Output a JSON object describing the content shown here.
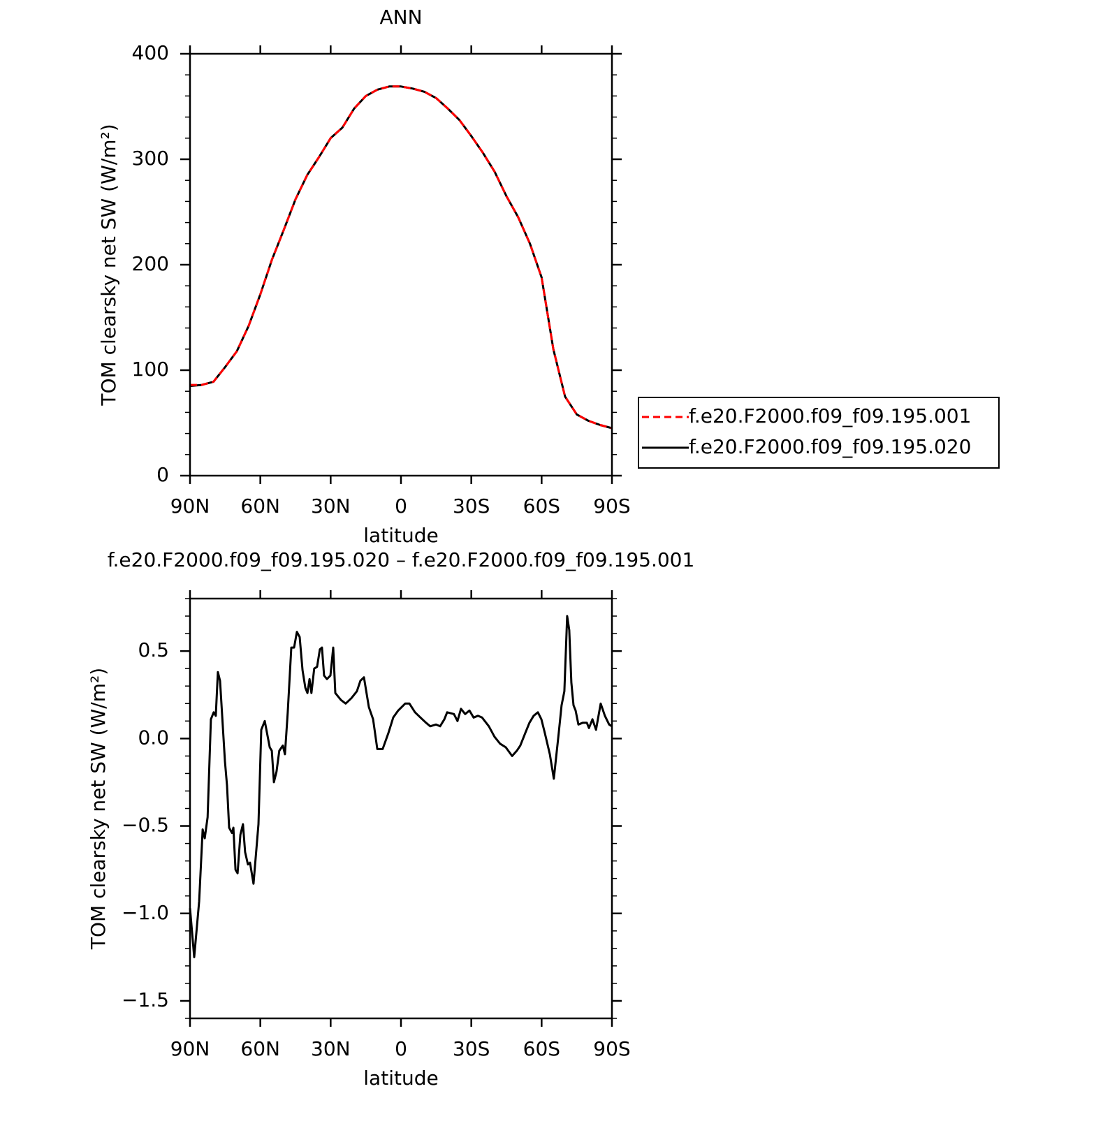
{
  "chart_data": [
    {
      "type": "line",
      "title": "ANN",
      "xlabel": "latitude",
      "ylabel": "TOM clearsky net SW (W/m²)",
      "x": [
        90,
        85,
        80,
        75,
        70,
        65,
        60,
        55,
        50,
        45,
        40,
        35,
        30,
        25,
        20,
        15,
        10,
        5,
        0,
        -5,
        -10,
        -15,
        -20,
        -25,
        -30,
        -35,
        -40,
        -45,
        -50,
        -55,
        -60,
        -65,
        -70,
        -75,
        -80,
        -85,
        -90
      ],
      "xlim": [
        90,
        -90
      ],
      "xticks": [
        {
          "value": 90,
          "label": "90N"
        },
        {
          "value": 60,
          "label": "60N"
        },
        {
          "value": 30,
          "label": "30N"
        },
        0,
        {
          "value": -30,
          "label": "30S"
        },
        {
          "value": -60,
          "label": "60S"
        },
        {
          "value": -90,
          "label": "90S"
        }
      ],
      "ylim": [
        0,
        400
      ],
      "yticks": [
        0,
        100,
        200,
        300,
        400
      ],
      "legend": "right",
      "series": [
        {
          "name": "f.e20.F2000.f09_f09.195.001",
          "color": "#ff0000",
          "linestyle": "dashed",
          "values": [
            86,
            86,
            89,
            103,
            118,
            142,
            172,
            205,
            233,
            262,
            285,
            302,
            320,
            330,
            348,
            360,
            366,
            369,
            369,
            367,
            364,
            358,
            348,
            337,
            322,
            306,
            288,
            265,
            245,
            220,
            188,
            120,
            75,
            58,
            52,
            48,
            45
          ]
        },
        {
          "name": "f.e20.F2000.f09_f09.195.020",
          "color": "#000000",
          "linestyle": "solid",
          "values": [
            85,
            86,
            89,
            103,
            118,
            142,
            172,
            205,
            233,
            262,
            285,
            302,
            320,
            330,
            348,
            360,
            366,
            369,
            369,
            367,
            364,
            358,
            348,
            337,
            322,
            306,
            288,
            265,
            245,
            220,
            188,
            120,
            75,
            58,
            52,
            48,
            45
          ]
        }
      ]
    },
    {
      "type": "line",
      "title": "f.e20.F2000.f09_f09.195.020 – f.e20.F2000.f09_f09.195.001",
      "xlabel": "latitude",
      "ylabel": "TOM clearsky net SW (W/m²)",
      "x": [
        90,
        88.2,
        86.1,
        84.6,
        83.7,
        82.5,
        81.1,
        79.9,
        79,
        78.1,
        77.2,
        75.1,
        74.2,
        73.3,
        72.1,
        71.5,
        70.6,
        69.7,
        68.5,
        67.4,
        66.5,
        65.3,
        64.4,
        62.9,
        60.8,
        59.6,
        58.1,
        56,
        55.1,
        54.2,
        53.1,
        51.9,
        50.4,
        49.5,
        48.3,
        46.8,
        45.6,
        44.4,
        43.2,
        42,
        40.8,
        39.9,
        39,
        38.2,
        37,
        35.8,
        34.6,
        33.7,
        32.8,
        31.6,
        30.1,
        28.9,
        28,
        25.6,
        23.6,
        21.2,
        18.8,
        17.3,
        15.8,
        13.7,
        11.9,
        10.1,
        7.8,
        5.4,
        3.3,
        1.2,
        -1.8,
        -3.6,
        -6,
        -8.3,
        -10.7,
        -12.5,
        -14.9,
        -16.7,
        -18.5,
        -19.7,
        -22.6,
        -24.1,
        -25.6,
        -27.4,
        -29.2,
        -31,
        -32.8,
        -34.6,
        -37.5,
        -39.9,
        -42.3,
        -44.7,
        -47.4,
        -49.4,
        -50.9,
        -53,
        -54.8,
        -56.6,
        -58.4,
        -59.9,
        -61.4,
        -63.5,
        -65.2,
        -67.3,
        -68.5,
        -69.7,
        -70.9,
        -71.8,
        -72.7,
        -73.6,
        -74.5,
        -75.7,
        -77.5,
        -79.3,
        -80.2,
        -81.7,
        -83.2,
        -85.2,
        -87,
        -88.8,
        -90
      ],
      "values": [
        -0.97,
        -1.25,
        -0.93,
        -0.52,
        -0.57,
        -0.45,
        0.11,
        0.15,
        0.13,
        0.38,
        0.33,
        -0.13,
        -0.27,
        -0.51,
        -0.54,
        -0.51,
        -0.75,
        -0.77,
        -0.55,
        -0.49,
        -0.65,
        -0.72,
        -0.71,
        -0.83,
        -0.49,
        0.05,
        0.1,
        -0.05,
        -0.07,
        -0.25,
        -0.19,
        -0.07,
        -0.04,
        -0.09,
        0.15,
        0.52,
        0.52,
        0.61,
        0.58,
        0.39,
        0.29,
        0.26,
        0.34,
        0.26,
        0.4,
        0.41,
        0.51,
        0.52,
        0.36,
        0.34,
        0.36,
        0.52,
        0.26,
        0.22,
        0.2,
        0.23,
        0.27,
        0.33,
        0.35,
        0.18,
        0.11,
        -0.06,
        -0.06,
        0.03,
        0.12,
        0.16,
        0.2,
        0.2,
        0.15,
        0.12,
        0.09,
        0.07,
        0.08,
        0.07,
        0.11,
        0.15,
        0.14,
        0.1,
        0.17,
        0.14,
        0.16,
        0.12,
        0.13,
        0.12,
        0.07,
        0.01,
        -0.03,
        -0.05,
        -0.1,
        -0.07,
        -0.04,
        0.03,
        0.09,
        0.13,
        0.15,
        0.11,
        0.03,
        -0.09,
        -0.23,
        0.03,
        0.19,
        0.27,
        0.7,
        0.62,
        0.32,
        0.19,
        0.16,
        0.08,
        0.09,
        0.09,
        0.06,
        0.11,
        0.05,
        0.2,
        0.13,
        0.08,
        0.07
      ],
      "color": "#000000",
      "xlim": [
        90,
        -90
      ],
      "xticks": [
        {
          "value": 90,
          "label": "90N"
        },
        {
          "value": 60,
          "label": "60N"
        },
        {
          "value": 30,
          "label": "30N"
        },
        0,
        {
          "value": -30,
          "label": "30S"
        },
        {
          "value": -60,
          "label": "60S"
        },
        {
          "value": -90,
          "label": "90S"
        }
      ],
      "ylim": [
        -1.6,
        0.8
      ],
      "yticks": [
        {
          "value": -1.5,
          "label": "−1.5"
        },
        {
          "value": -1,
          "label": "−1.0"
        },
        {
          "value": -0.5,
          "label": "−0.5"
        },
        {
          "value": 0,
          "label": "0.0"
        },
        {
          "value": 0.5,
          "label": "0.5"
        }
      ]
    }
  ]
}
